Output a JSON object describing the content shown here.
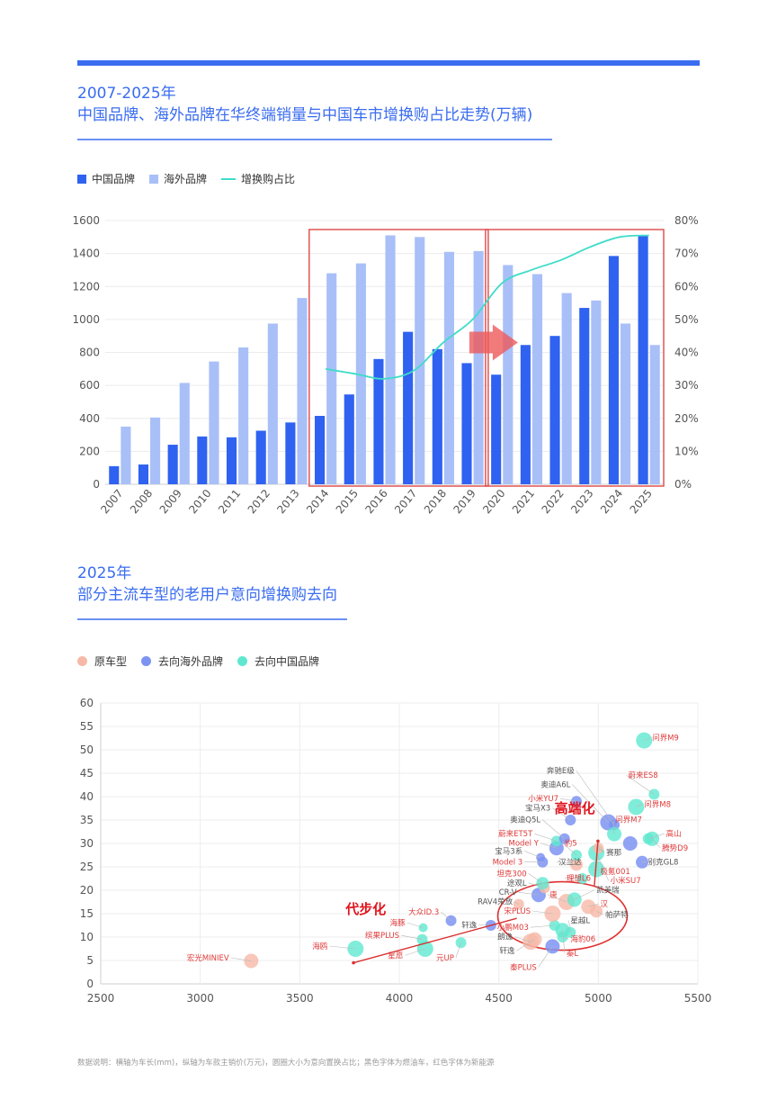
{
  "chart_data": [
    {
      "type": "bar",
      "title_line1": "2007-2025年",
      "title_line2": "中国品牌、海外品牌在华终端销量与中国车市增换购占比走势(万辆)",
      "categories": [
        "2007",
        "2008",
        "2009",
        "2010",
        "2011",
        "2012",
        "2013",
        "2014",
        "2015",
        "2016",
        "2017",
        "2018",
        "2019",
        "2020",
        "2021",
        "2022",
        "2023",
        "2024",
        "2025"
      ],
      "series": [
        {
          "name": "中国品牌",
          "color": "#2f62f0",
          "values": [
            110,
            120,
            240,
            290,
            285,
            325,
            375,
            415,
            545,
            760,
            925,
            820,
            735,
            665,
            845,
            900,
            1070,
            1385,
            1505
          ]
        },
        {
          "name": "海外品牌",
          "color": "#a9bff7",
          "values": [
            350,
            405,
            615,
            745,
            830,
            975,
            1130,
            1280,
            1340,
            1510,
            1500,
            1410,
            1415,
            1330,
            1275,
            1160,
            1115,
            975,
            845
          ]
        },
        {
          "name": "增换购占比",
          "color": "#3fdcc8",
          "axis": "right",
          "x": [
            "2014",
            "2015",
            "2016",
            "2017",
            "2018",
            "2019",
            "2020",
            "2021",
            "2022",
            "2023",
            "2024",
            "2025"
          ],
          "values": [
            35,
            33.5,
            32,
            34.5,
            43,
            50,
            61,
            65,
            68,
            72,
            75,
            75.5
          ]
        }
      ],
      "ylim": [
        0,
        1600
      ],
      "yticks": [
        "0",
        "200",
        "400",
        "600",
        "800",
        "1000",
        "1200",
        "1400",
        "1600"
      ],
      "y2lim": [
        0,
        80
      ],
      "y2ticks": [
        "0%",
        "10%",
        "20%",
        "30%",
        "40%",
        "50%",
        "60%",
        "70%",
        "80%"
      ],
      "highlight_boxes": [
        [
          "2014",
          "2019"
        ],
        [
          "2020",
          "2025"
        ]
      ],
      "grid": true,
      "legend_position": "top-left"
    },
    {
      "type": "scatter",
      "title_line1": "2025年",
      "title_line2": "部分主流车型的老用户意向增换购去向",
      "xlim": [
        2500,
        5500
      ],
      "ylim": [
        0,
        60
      ],
      "xticks": [
        "2500",
        "3000",
        "3500",
        "4000",
        "4500",
        "5000",
        "5500"
      ],
      "yticks": [
        "0",
        "5",
        "10",
        "15",
        "20",
        "25",
        "30",
        "35",
        "40",
        "45",
        "50",
        "55",
        "60"
      ],
      "legend": [
        {
          "name": "原车型",
          "color": "#f6b9a8"
        },
        {
          "name": "去向海外品牌",
          "color": "#7c93f2"
        },
        {
          "name": "去向中国品牌",
          "color": "#5fe8cf"
        }
      ],
      "points": [
        {
          "label": "宏光MINIEV",
          "group": 0,
          "x": 3256,
          "y": 4.9,
          "r": 8,
          "lx": 3145,
          "ly": 5.0,
          "anchor": "end",
          "label_color": "red"
        },
        {
          "label": "海鸥",
          "group": 2,
          "x": 3780,
          "y": 7.5,
          "r": 9,
          "lx": 3640,
          "ly": 7.5,
          "anchor": "end",
          "label_color": "red"
        },
        {
          "label": "缤果PLUS",
          "group": 2,
          "x": 4115,
          "y": 9.5,
          "r": 6,
          "lx": 4000,
          "ly": 9.8,
          "anchor": "end",
          "label_color": "red"
        },
        {
          "label": "海豚",
          "group": 2,
          "x": 4120,
          "y": 12.0,
          "r": 5,
          "lx": 4030,
          "ly": 12.5,
          "anchor": "end",
          "label_color": "red"
        },
        {
          "label": "星愿",
          "group": 2,
          "x": 4130,
          "y": 7.5,
          "r": 9,
          "lx": 4020,
          "ly": 5.5,
          "anchor": "end",
          "label_color": "red"
        },
        {
          "label": "元UP",
          "group": 2,
          "x": 4310,
          "y": 8.8,
          "r": 6,
          "lx": 4275,
          "ly": 5.0,
          "anchor": "end",
          "label_color": "red"
        },
        {
          "label": "大众ID.3",
          "group": 1,
          "x": 4260,
          "y": 13.5,
          "r": 6,
          "lx": 4200,
          "ly": 14.8,
          "anchor": "end",
          "label_color": "red"
        },
        {
          "label": "轩逸",
          "group": 1,
          "x": 4460,
          "y": 12.5,
          "r": 6,
          "lx": 4390,
          "ly": 12.0,
          "anchor": "end",
          "label_color": "black"
        },
        {
          "label": "朗逸",
          "group": 0,
          "x": 4660,
          "y": 9.0,
          "r": 9,
          "lx": 4570,
          "ly": 9.5,
          "anchor": "end",
          "label_color": "black"
        },
        {
          "label": "轩逸",
          "group": 0,
          "x": 4680,
          "y": 9.5,
          "r": 8,
          "lx": 4580,
          "ly": 6.5,
          "anchor": "end",
          "label_color": "black"
        },
        {
          "label": "秦PLUS",
          "group": 1,
          "x": 4770,
          "y": 8.0,
          "r": 8,
          "lx": 4690,
          "ly": 3.0,
          "anchor": "end",
          "label_color": "red"
        },
        {
          "label": "秦L",
          "group": 2,
          "x": 4820,
          "y": 11.5,
          "r": 8,
          "lx": 4840,
          "ly": 6.0,
          "anchor": "start",
          "label_color": "red"
        },
        {
          "label": "小鹏M03",
          "group": 2,
          "x": 4780,
          "y": 12.5,
          "r": 6,
          "lx": 4650,
          "ly": 11.5,
          "anchor": "end",
          "label_color": "red"
        },
        {
          "label": "宋PLUS",
          "group": 0,
          "x": 4770,
          "y": 15.0,
          "r": 9,
          "lx": 4660,
          "ly": 15.0,
          "anchor": "end",
          "label_color": "red"
        },
        {
          "label": "星越L",
          "group": 2,
          "x": 4860,
          "y": 11.0,
          "r": 6,
          "lx": 4860,
          "ly": 13.0,
          "anchor": "start",
          "label_color": "black"
        },
        {
          "label": "海豹06",
          "group": 2,
          "x": 4820,
          "y": 10.0,
          "r": 6,
          "lx": 4860,
          "ly": 9.0,
          "anchor": "start",
          "label_color": "red"
        },
        {
          "label": "唐",
          "group": 0,
          "x": 4840,
          "y": 17.5,
          "r": 9,
          "lx": 4755,
          "ly": 18.5,
          "anchor": "start",
          "label_color": "red"
        },
        {
          "label": "凯美瑞",
          "group": 2,
          "x": 4880,
          "y": 18.0,
          "r": 8,
          "lx": 4990,
          "ly": 19.5,
          "anchor": "start",
          "label_color": "black"
        },
        {
          "label": "汉",
          "group": 0,
          "x": 4950,
          "y": 16.5,
          "r": 8,
          "lx": 5010,
          "ly": 16.5,
          "anchor": "start",
          "label_color": "red"
        },
        {
          "label": "帕萨特",
          "group": 0,
          "x": 4990,
          "y": 15.5,
          "r": 7,
          "lx": 5035,
          "ly": 14.2,
          "anchor": "start",
          "label_color": "black"
        },
        {
          "label": "CR-V",
          "group": 1,
          "x": 4700,
          "y": 19.0,
          "r": 8,
          "lx": 4590,
          "ly": 19.0,
          "anchor": "end",
          "label_color": "black"
        },
        {
          "label": "RAV4荣放",
          "group": 0,
          "x": 4600,
          "y": 17.0,
          "r": 6,
          "lx": 4570,
          "ly": 17.0,
          "anchor": "end",
          "label_color": "black"
        },
        {
          "label": "途观L",
          "group": 0,
          "x": 4730,
          "y": 20.5,
          "r": 6,
          "lx": 4640,
          "ly": 21.0,
          "anchor": "end",
          "label_color": "black"
        },
        {
          "label": "坦克300",
          "group": 2,
          "x": 4720,
          "y": 21.5,
          "r": 7,
          "lx": 4640,
          "ly": 23.0,
          "anchor": "end",
          "label_color": "red"
        },
        {
          "label": "理想L6",
          "group": 2,
          "x": 4920,
          "y": 22.5,
          "r": 6,
          "lx": 4840,
          "ly": 22.0,
          "anchor": "start",
          "label_color": "red"
        },
        {
          "label": "Model 3",
          "group": 1,
          "x": 4720,
          "y": 26.0,
          "r": 6,
          "lx": 4620,
          "ly": 25.5,
          "anchor": "end",
          "label_color": "red"
        },
        {
          "label": "宝马3系",
          "group": 1,
          "x": 4710,
          "y": 27.0,
          "r": 5,
          "lx": 4620,
          "ly": 27.8,
          "anchor": "end",
          "label_color": "black"
        },
        {
          "label": "汉兰达",
          "group": 0,
          "x": 4890,
          "y": 25.5,
          "r": 7,
          "lx": 4800,
          "ly": 25.5,
          "anchor": "start",
          "label_color": "black"
        },
        {
          "label": "豹5",
          "group": 2,
          "x": 4890,
          "y": 27.5,
          "r": 6,
          "lx": 4830,
          "ly": 29.5,
          "anchor": "start",
          "label_color": "red"
        },
        {
          "label": "极氪001",
          "group": 2,
          "x": 4990,
          "y": 24.5,
          "r": 9,
          "lx": 5010,
          "ly": 23.5,
          "anchor": "start",
          "label_color": "red"
        },
        {
          "label": "小米SU7",
          "group": 2,
          "x": 4990,
          "y": 28.0,
          "r": 9,
          "lx": 5060,
          "ly": 21.5,
          "anchor": "start",
          "label_color": "red"
        },
        {
          "label": "赛那",
          "group": 0,
          "x": 5000,
          "y": 29.0,
          "r": 6,
          "lx": 5040,
          "ly": 27.5,
          "anchor": "start",
          "label_color": "black"
        },
        {
          "label": "Model Y",
          "group": 1,
          "x": 4790,
          "y": 29.0,
          "r": 8,
          "lx": 4700,
          "ly": 29.5,
          "anchor": "end",
          "label_color": "red"
        },
        {
          "label": "蔚来ET5T",
          "group": 2,
          "x": 4790,
          "y": 30.5,
          "r": 6,
          "lx": 4670,
          "ly": 31.5,
          "anchor": "end",
          "label_color": "red"
        },
        {
          "label": "奥迪Q5L",
          "group": 1,
          "x": 4830,
          "y": 31.0,
          "r": 6,
          "lx": 4710,
          "ly": 34.5,
          "anchor": "end",
          "label_color": "black"
        },
        {
          "label": "宝马X3",
          "group": 1,
          "x": 4860,
          "y": 35.0,
          "r": 6,
          "lx": 4760,
          "ly": 37.0,
          "anchor": "end",
          "label_color": "black"
        },
        {
          "label": "小米YU7",
          "group": 1,
          "x": 4890,
          "y": 39.0,
          "r": 6,
          "lx": 4800,
          "ly": 39.0,
          "anchor": "end",
          "label_color": "red"
        },
        {
          "label": "奥迪A6L",
          "group": 1,
          "x": 5050,
          "y": 34.5,
          "r": 9,
          "lx": 4860,
          "ly": 42.0,
          "anchor": "end",
          "label_color": "black"
        },
        {
          "label": "奔驰E级",
          "group": 1,
          "x": 5080,
          "y": 34.0,
          "r": 6,
          "lx": 4880,
          "ly": 45.0,
          "anchor": "end",
          "label_color": "black"
        },
        {
          "label": "问界M7",
          "group": 2,
          "x": 5080,
          "y": 32.0,
          "r": 8,
          "lx": 5085,
          "ly": 34.5,
          "anchor": "start",
          "label_color": "red"
        },
        {
          "label": "问界M8",
          "group": 2,
          "x": 5190,
          "y": 37.8,
          "r": 9,
          "lx": 5230,
          "ly": 37.8,
          "anchor": "start",
          "label_color": "red"
        },
        {
          "label": "蔚来ES8",
          "group": 2,
          "x": 5280,
          "y": 40.5,
          "r": 6,
          "lx": 5150,
          "ly": 44.0,
          "anchor": "start",
          "label_color": "red"
        },
        {
          "label": "问界M9",
          "group": 2,
          "x": 5230,
          "y": 52.0,
          "r": 9,
          "lx": 5270,
          "ly": 52.0,
          "anchor": "start",
          "label_color": "red"
        },
        {
          "label": "别克GL8",
          "group": 1,
          "x": 5220,
          "y": 26.0,
          "r": 7,
          "lx": 5250,
          "ly": 25.5,
          "anchor": "start",
          "label_color": "black"
        },
        {
          "label": "腾势D9",
          "group": 2,
          "x": 5270,
          "y": 31.0,
          "r": 8,
          "lx": 5320,
          "ly": 28.5,
          "anchor": "start",
          "label_color": "red"
        },
        {
          "label": "高山",
          "group": 2,
          "x": 5250,
          "y": 31.0,
          "r": 6,
          "lx": 5340,
          "ly": 31.5,
          "anchor": "start",
          "label_color": "red"
        },
        {
          "label": "",
          "group": 1,
          "x": 5160,
          "y": 30.0,
          "r": 8,
          "lx": 0,
          "ly": 0,
          "anchor": "start",
          "label_color": "black"
        }
      ],
      "annotations": [
        {
          "text": "高端化",
          "x": 4780,
          "y": 36.5,
          "color": "red"
        },
        {
          "text": "代步化",
          "x": 3730,
          "y": 15.0,
          "color": "red"
        }
      ],
      "grid": true,
      "legend_position": "top-left"
    }
  ],
  "footnote": "数据说明：横轴为车长(mm)，纵轴为车款主销价(万元)，圆圈大小为意向置换占比；黑色字体为燃油车，红色字体为新能源"
}
